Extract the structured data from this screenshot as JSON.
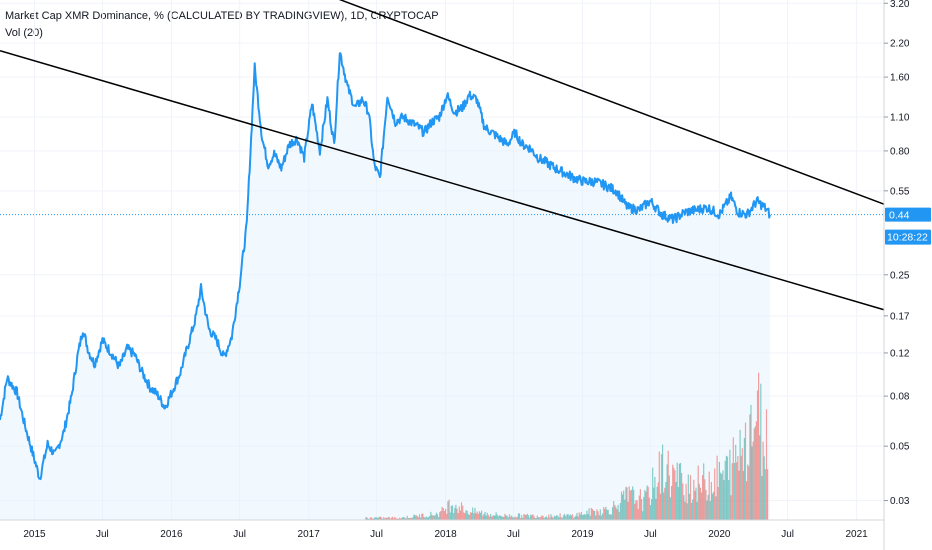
{
  "legend": {
    "title": "Market Cap XMR Dominance, % (CALCULATED BY TRADINGVIEW), 1D, CRYPTOCAP",
    "volume": "Vol (20)"
  },
  "price_tag": {
    "value": "0.44",
    "countdown": "10:28:22"
  },
  "colors": {
    "line": "#2196f3",
    "area_fill": "#e3f2fd",
    "volume_up": "#26a69a",
    "volume_down": "#ef5350",
    "trendline": "#000000",
    "price_tag": "#2196f3",
    "grid": "#f0f3fa"
  },
  "chart_data": {
    "type": "line",
    "title": "Market Cap XMR Dominance, % (CALCULATED BY TRADINGVIEW), 1D, CRYPTOCAP",
    "y_scale": "log",
    "ylim": [
      0.025,
      3.3
    ],
    "x_range": [
      "2014-10-01",
      "2021-03-15"
    ],
    "x_ticks": [
      "2015",
      "Jul",
      "2016",
      "Jul",
      "2017",
      "Jul",
      "2018",
      "Jul",
      "2019",
      "Jul",
      "2020",
      "Jul",
      "2021"
    ],
    "y_ticks": [
      "3.20",
      "2.20",
      "1.60",
      "1.10",
      "0.80",
      "0.55",
      "0.44",
      "0.25",
      "0.17",
      "0.12",
      "0.08",
      "0.05",
      "0.03"
    ],
    "grid": true,
    "series": [
      {
        "x": [
          "2014-10-01",
          "2014-10-20",
          "2014-11-15",
          "2014-12-05",
          "2014-12-25",
          "2015-01-15",
          "2015-02-05",
          "2015-02-25",
          "2015-03-20",
          "2015-04-10",
          "2015-04-25",
          "2015-05-10",
          "2015-05-25",
          "2015-06-10",
          "2015-07-01",
          "2015-07-25",
          "2015-08-15",
          "2015-09-05",
          "2015-09-25",
          "2015-10-15",
          "2015-11-05",
          "2015-11-25",
          "2015-12-15",
          "2016-01-05",
          "2016-01-25",
          "2016-02-15",
          "2016-03-05",
          "2016-03-20",
          "2016-04-10",
          "2016-05-01",
          "2016-05-20",
          "2016-06-10",
          "2016-07-01",
          "2016-07-20",
          "2016-08-10",
          "2016-08-20",
          "2016-08-30",
          "2016-09-15",
          "2016-10-01",
          "2016-10-20",
          "2016-11-10",
          "2016-12-01",
          "2016-12-20",
          "2017-01-10",
          "2017-01-31",
          "2017-02-20",
          "2017-03-10",
          "2017-03-25",
          "2017-04-15",
          "2017-05-05",
          "2017-05-25",
          "2017-06-10",
          "2017-06-25",
          "2017-07-10",
          "2017-07-30",
          "2017-08-20",
          "2017-09-10",
          "2017-09-30",
          "2017-10-20",
          "2017-11-05",
          "2017-11-25",
          "2017-12-15",
          "2018-01-05",
          "2018-01-25",
          "2018-02-15",
          "2018-03-05",
          "2018-03-25",
          "2018-04-15",
          "2018-05-05",
          "2018-05-25",
          "2018-06-15",
          "2018-07-05",
          "2018-07-25",
          "2018-08-15",
          "2018-09-05",
          "2018-09-25",
          "2018-10-20",
          "2018-11-15",
          "2018-12-10",
          "2019-01-05",
          "2019-02-01",
          "2019-03-01",
          "2019-04-01",
          "2019-05-01",
          "2019-06-01",
          "2019-07-01",
          "2019-08-01",
          "2019-09-01",
          "2019-10-01",
          "2019-11-01",
          "2019-12-01",
          "2020-01-01",
          "2020-02-01",
          "2020-02-20",
          "2020-03-15",
          "2020-04-10",
          "2020-05-01",
          "2020-05-15"
        ],
        "values": [
          0.064,
          0.095,
          0.083,
          0.062,
          0.048,
          0.037,
          0.051,
          0.046,
          0.057,
          0.08,
          0.115,
          0.15,
          0.122,
          0.108,
          0.135,
          0.12,
          0.105,
          0.125,
          0.118,
          0.1,
          0.087,
          0.081,
          0.072,
          0.085,
          0.1,
          0.13,
          0.165,
          0.22,
          0.15,
          0.135,
          0.115,
          0.14,
          0.23,
          0.4,
          1.75,
          1.25,
          0.9,
          0.7,
          0.78,
          0.68,
          0.85,
          0.9,
          0.75,
          1.25,
          0.8,
          1.3,
          0.85,
          2.05,
          1.45,
          1.2,
          1.3,
          1.15,
          0.7,
          0.62,
          1.35,
          1.05,
          1.1,
          1.05,
          1.0,
          0.95,
          1.05,
          1.1,
          1.35,
          1.15,
          1.2,
          1.35,
          1.3,
          1.0,
          0.95,
          0.9,
          0.85,
          0.95,
          0.85,
          0.82,
          0.75,
          0.72,
          0.68,
          0.65,
          0.62,
          0.6,
          0.6,
          0.58,
          0.55,
          0.47,
          0.46,
          0.5,
          0.44,
          0.42,
          0.45,
          0.46,
          0.47,
          0.44,
          0.52,
          0.45,
          0.44,
          0.5,
          0.47,
          0.44
        ]
      }
    ],
    "volume": {
      "x": [
        "2017-06-01",
        "2017-09-01",
        "2017-12-15",
        "2018-01-15",
        "2018-03-01",
        "2018-06-01",
        "2018-09-01",
        "2018-12-01",
        "2019-02-01",
        "2019-03-15",
        "2019-05-01",
        "2019-06-15",
        "2019-08-01",
        "2019-09-15",
        "2019-11-01",
        "2019-12-15",
        "2020-01-15",
        "2020-02-15",
        "2020-03-15",
        "2020-04-10",
        "2020-05-10"
      ],
      "values": [
        0.1,
        0.1,
        0.3,
        0.8,
        0.4,
        0.2,
        0.2,
        0.2,
        0.4,
        0.5,
        1.1,
        0.9,
        2.4,
        1.8,
        1.6,
        1.9,
        2.1,
        2.8,
        4.2,
        4.8,
        3.4
      ]
    },
    "annotations": [
      {
        "type": "trendline",
        "from": [
          "2014-10-01",
          11.0
        ],
        "to": [
          "2021-03-15",
          0.485
        ]
      },
      {
        "type": "trendline",
        "from": [
          "2014-10-01",
          2.05
        ],
        "to": [
          "2021-03-15",
          0.18
        ]
      }
    ]
  }
}
